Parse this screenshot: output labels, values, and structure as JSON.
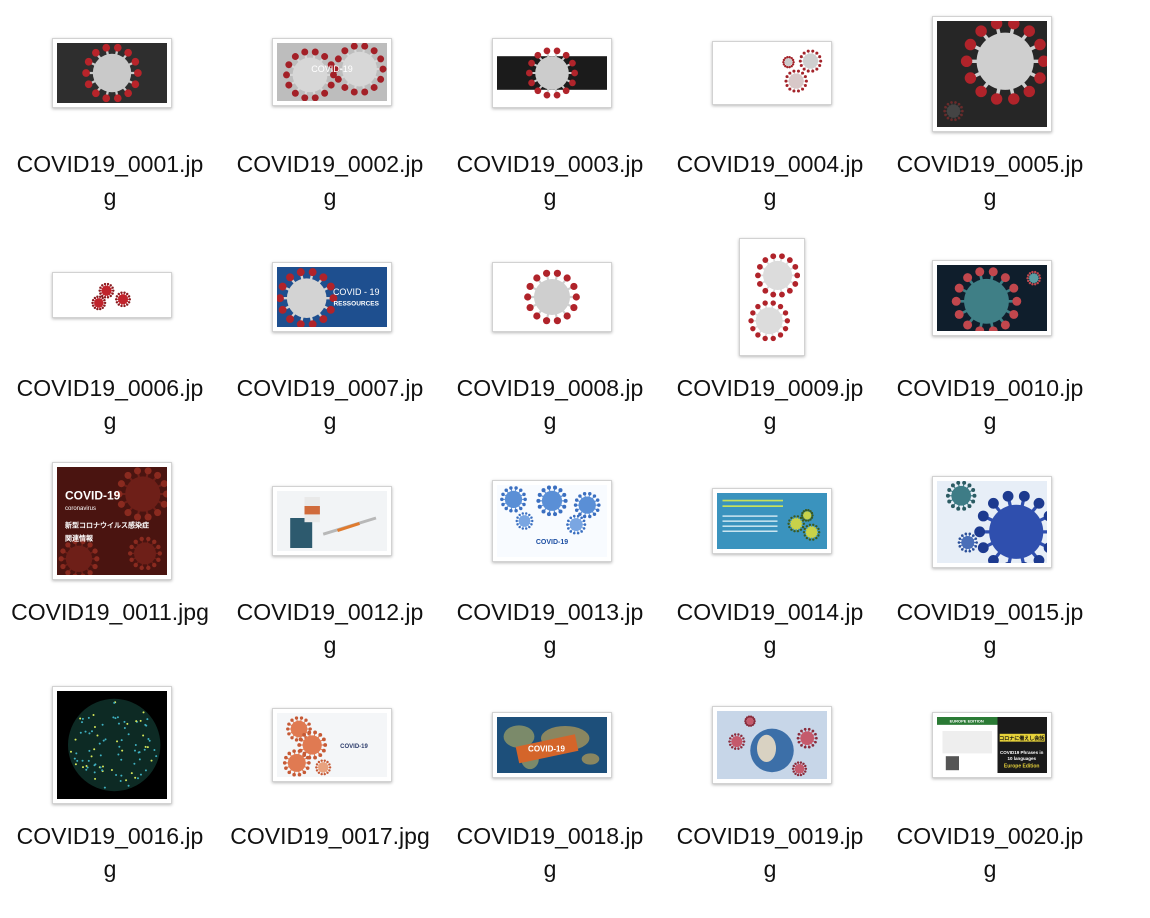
{
  "files": [
    {
      "name": "COVID19_0001.jpg",
      "line1": "COVID19_0001.jp",
      "line2": "g",
      "thumb": "virus-dark",
      "overlay": ""
    },
    {
      "name": "COVID19_0002.jpg",
      "line1": "COVID19_0002.jp",
      "line2": "g",
      "thumb": "virus-title",
      "overlay": "COVID-19"
    },
    {
      "name": "COVID19_0003.jpg",
      "line1": "COVID19_0003.jp",
      "line2": "g",
      "thumb": "virus-band",
      "overlay": ""
    },
    {
      "name": "COVID19_0004.jpg",
      "line1": "COVID19_0004.jp",
      "line2": "g",
      "thumb": "virus-white-right",
      "overlay": ""
    },
    {
      "name": "COVID19_0005.jpg",
      "line1": "COVID19_0005.jp",
      "line2": "g",
      "thumb": "virus-dark-square",
      "overlay": ""
    },
    {
      "name": "COVID19_0006.jpg",
      "line1": "COVID19_0006.jp",
      "line2": "g",
      "thumb": "virus-trio",
      "overlay": ""
    },
    {
      "name": "COVID19_0007.jpg",
      "line1": "COVID19_0007.jp",
      "line2": "g",
      "thumb": "virus-blue-title",
      "overlay": "COVID - 19",
      "overlay2": "RESSOURCES"
    },
    {
      "name": "COVID19_0008.jpg",
      "line1": "COVID19_0008.jp",
      "line2": "g",
      "thumb": "virus-white",
      "overlay": ""
    },
    {
      "name": "COVID19_0009.jpg",
      "line1": "COVID19_0009.jp",
      "line2": "g",
      "thumb": "virus-tall",
      "overlay": ""
    },
    {
      "name": "COVID19_0010.jpg",
      "line1": "COVID19_0010.jp",
      "line2": "g",
      "thumb": "virus-teal",
      "overlay": ""
    },
    {
      "name": "COVID19_0011.jpg",
      "line1": "COVID19_0011.jpg",
      "line2": "",
      "thumb": "poster-red",
      "overlay": "COVID-19",
      "overlay2": "coronavirus",
      "overlay3": "新型コロナウイルス感染症",
      "overlay4": "関連情報"
    },
    {
      "name": "COVID19_0012.jpg",
      "line1": "COVID19_0012.jp",
      "line2": "g",
      "thumb": "vaccine",
      "overlay": ""
    },
    {
      "name": "COVID19_0013.jpg",
      "line1": "COVID19_0013.jp",
      "line2": "g",
      "thumb": "blue-virus-white",
      "overlay": "COVID-19"
    },
    {
      "name": "COVID19_0014.jpg",
      "line1": "COVID19_0014.jp",
      "line2": "g",
      "thumb": "info-card",
      "overlay": ""
    },
    {
      "name": "COVID19_0015.jpg",
      "line1": "COVID19_0015.jp",
      "line2": "g",
      "thumb": "blue-virus",
      "overlay": ""
    },
    {
      "name": "COVID19_0016.jpg",
      "line1": "COVID19_0016.jp",
      "line2": "g",
      "thumb": "globe-dots",
      "overlay": ""
    },
    {
      "name": "COVID19_0017.jpg",
      "line1": "COVID19_0017.jpg",
      "line2": "",
      "thumb": "virus-chain",
      "overlay": "COVID-19"
    },
    {
      "name": "COVID19_0018.jpg",
      "line1": "COVID19_0018.jp",
      "line2": "g",
      "thumb": "world-map",
      "overlay": "COVID-19"
    },
    {
      "name": "COVID19_0019.jpg",
      "line1": "COVID19_0019.jp",
      "line2": "g",
      "thumb": "earth-virus",
      "overlay": ""
    },
    {
      "name": "COVID19_0020.jpg",
      "line1": "COVID19_0020.jp",
      "line2": "g",
      "thumb": "phrases-poster",
      "overlay": "COVID19 Phrases in",
      "overlay2": "10 languages",
      "overlay3": "Europe Edition",
      "overlay4": "コロナに備えし会話",
      "overlay5": "EUROPE EDITION"
    }
  ]
}
